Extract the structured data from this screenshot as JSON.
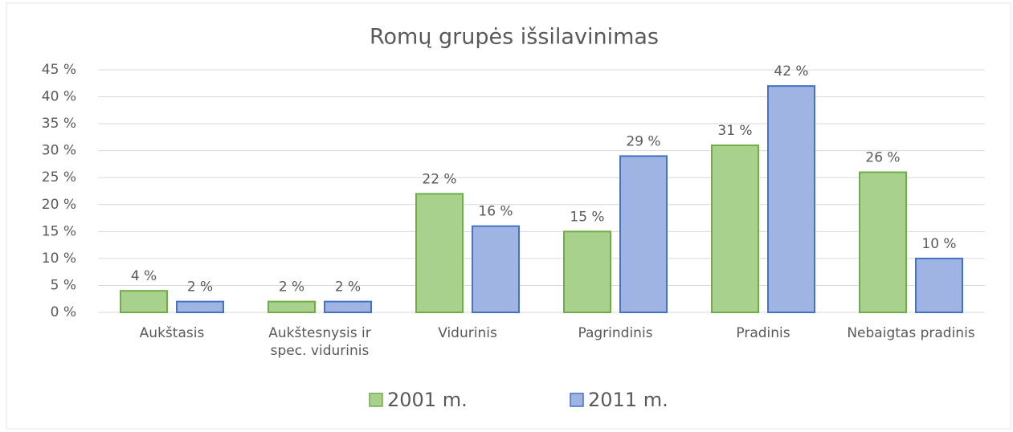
{
  "chart_data": {
    "type": "bar",
    "title": "Romų grupės išsilavinimas",
    "categories": [
      "Aukštasis",
      "Aukštesnysis ir spec. vidurinis",
      "Vidurinis",
      "Pagrindinis",
      "Pradinis",
      "Nebaigtas pradinis"
    ],
    "series": [
      {
        "name": "2001 m.",
        "color": "#a9d18e",
        "edgecolor": "#70ad47",
        "values": [
          4,
          2,
          22,
          15,
          31,
          26
        ],
        "value_labels": [
          "4 %",
          "2 %",
          "22 %",
          "15 %",
          "31 %",
          "26 %"
        ]
      },
      {
        "name": "2011 m.",
        "color": "#9fb4e2",
        "edgecolor": "#4472c4",
        "values": [
          2,
          2,
          16,
          29,
          42,
          10
        ],
        "value_labels": [
          "2 %",
          "2 %",
          "16 %",
          "29 %",
          "42 %",
          "10 %"
        ]
      }
    ],
    "ylim": [
      0,
      45
    ],
    "yticks": [
      {
        "value": 0,
        "label": "0 %"
      },
      {
        "value": 5,
        "label": "5 %"
      },
      {
        "value": 10,
        "label": "10 %"
      },
      {
        "value": 15,
        "label": "15 %"
      },
      {
        "value": 20,
        "label": "20 %"
      },
      {
        "value": 25,
        "label": "25 %"
      },
      {
        "value": 30,
        "label": "30 %"
      },
      {
        "value": 35,
        "label": "35 %"
      },
      {
        "value": 40,
        "label": "40 %"
      },
      {
        "value": 45,
        "label": "45 %"
      }
    ],
    "grid": true,
    "legend": "bottom"
  }
}
